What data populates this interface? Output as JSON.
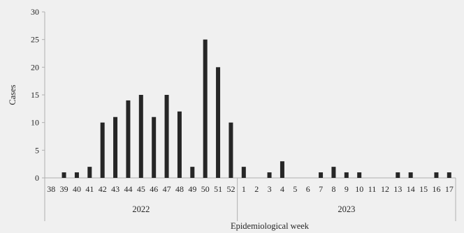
{
  "chart_data": {
    "type": "bar",
    "ylabel": "Cases",
    "xlabel": "Epidemiological week",
    "ylim": [
      0,
      30
    ],
    "yticks": [
      0,
      5,
      10,
      15,
      20,
      25,
      30
    ],
    "grid": false,
    "categories": [
      "38",
      "39",
      "40",
      "41",
      "42",
      "43",
      "44",
      "45",
      "46",
      "47",
      "48",
      "49",
      "50",
      "51",
      "52",
      "1",
      "2",
      "3",
      "4",
      "5",
      "6",
      "7",
      "8",
      "9",
      "10",
      "11",
      "12",
      "13",
      "14",
      "15",
      "16",
      "17"
    ],
    "values": [
      0,
      1,
      1,
      2,
      10,
      11,
      14,
      15,
      11,
      15,
      12,
      2,
      25,
      20,
      10,
      2,
      0,
      1,
      3,
      0,
      0,
      1,
      2,
      1,
      1,
      0,
      0,
      1,
      1,
      0,
      1,
      1
    ],
    "groups": [
      {
        "label": "2022",
        "count": 15
      },
      {
        "label": "2023",
        "count": 17
      }
    ],
    "colors": {
      "bar": "#262626",
      "axis": "#b0b0b0",
      "text": "#262626",
      "background": "#f0f0f0"
    }
  }
}
